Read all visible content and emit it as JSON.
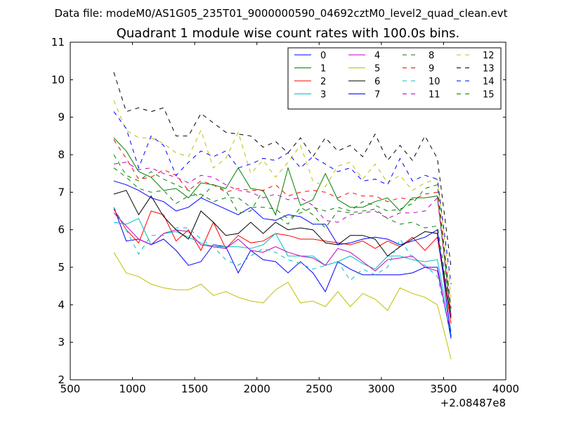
{
  "figure": {
    "suptitle": "Data file: modeM0/AS1G05_235T01_9000000590_04692cztM0_level2_quad_clean.evt"
  },
  "chart_data": {
    "type": "line",
    "title": "Quadrant 1 module wise count rates with 100.0s bins.",
    "xlabel": "",
    "ylabel": "",
    "x_offset_label": "+2.08487e8",
    "xlim": [
      500,
      4000
    ],
    "ylim": [
      2,
      11
    ],
    "xticks": [
      500,
      1000,
      1500,
      2000,
      2500,
      3000,
      3500,
      4000
    ],
    "yticks": [
      2,
      3,
      4,
      5,
      6,
      7,
      8,
      9,
      10,
      11
    ],
    "grid": false,
    "legend": {
      "placement": "top-right",
      "columns": 4
    },
    "x": [
      850,
      950,
      1050,
      1150,
      1250,
      1350,
      1450,
      1550,
      1650,
      1750,
      1850,
      1950,
      2050,
      2150,
      2250,
      2350,
      2450,
      2550,
      2650,
      2750,
      2850,
      2950,
      3050,
      3150,
      3250,
      3350,
      3450,
      3560
    ],
    "series": [
      {
        "name": "0",
        "color": "#0000ff",
        "dash": "solid",
        "values": [
          6.6,
          5.7,
          5.75,
          5.6,
          5.75,
          5.45,
          5.05,
          5.15,
          5.6,
          5.55,
          4.85,
          5.45,
          5.2,
          5.15,
          4.85,
          5.15,
          4.85,
          4.35,
          5.15,
          4.95,
          4.8,
          4.8,
          4.8,
          4.8,
          4.85,
          5.0,
          5.0,
          3.1
        ]
      },
      {
        "name": "1",
        "color": "#008000",
        "dash": "solid",
        "values": [
          8.45,
          8.1,
          7.55,
          7.4,
          7.05,
          7.1,
          6.85,
          7.25,
          7.2,
          7.1,
          7.65,
          7.1,
          7.05,
          6.4,
          7.65,
          6.65,
          6.8,
          7.5,
          6.8,
          6.6,
          6.6,
          6.75,
          6.85,
          6.5,
          6.85,
          6.85,
          6.9,
          3.7
        ]
      },
      {
        "name": "2",
        "color": "#ff0000",
        "dash": "solid",
        "values": [
          6.55,
          6.0,
          5.65,
          6.5,
          6.4,
          5.7,
          6.0,
          5.45,
          6.2,
          5.5,
          5.85,
          5.65,
          5.7,
          5.9,
          5.85,
          5.75,
          5.75,
          5.7,
          5.65,
          5.6,
          5.7,
          5.5,
          5.7,
          5.55,
          5.8,
          5.45,
          5.8,
          3.5
        ]
      },
      {
        "name": "3",
        "color": "#00bfbf",
        "dash": "solid",
        "values": [
          6.2,
          6.15,
          6.3,
          5.6,
          5.9,
          5.95,
          5.8,
          5.65,
          5.55,
          5.55,
          5.55,
          5.5,
          5.6,
          5.9,
          5.3,
          5.3,
          5.3,
          5.05,
          5.15,
          5.3,
          5.1,
          4.95,
          5.3,
          5.3,
          5.2,
          5.15,
          5.2,
          3.3
        ]
      },
      {
        "name": "4",
        "color": "#bf00bf",
        "dash": "solid",
        "values": [
          6.45,
          6.1,
          5.75,
          5.6,
          5.9,
          6.0,
          5.95,
          5.6,
          5.55,
          5.5,
          5.75,
          5.45,
          5.4,
          5.55,
          5.4,
          5.3,
          5.25,
          5.05,
          5.5,
          5.4,
          5.15,
          4.9,
          5.2,
          5.25,
          5.3,
          5.0,
          4.9,
          3.2
        ]
      },
      {
        "name": "5",
        "color": "#bfbf00",
        "dash": "solid",
        "values": [
          5.4,
          4.85,
          4.75,
          4.55,
          4.45,
          4.4,
          4.4,
          4.55,
          4.25,
          4.35,
          4.2,
          4.1,
          4.05,
          4.4,
          4.6,
          4.05,
          4.1,
          3.95,
          4.35,
          3.95,
          4.3,
          4.15,
          3.85,
          4.45,
          4.3,
          4.2,
          4.0,
          2.55
        ]
      },
      {
        "name": "6",
        "color": "#000000",
        "dash": "solid",
        "values": [
          6.95,
          7.05,
          6.4,
          6.9,
          6.35,
          6.0,
          5.75,
          6.5,
          6.2,
          5.85,
          5.9,
          6.2,
          5.9,
          6.2,
          6.0,
          6.05,
          6.0,
          5.65,
          5.6,
          5.85,
          5.85,
          5.75,
          5.3,
          5.55,
          5.75,
          5.95,
          5.9,
          3.65
        ]
      },
      {
        "name": "7",
        "color": "#0000ff",
        "dash": "solid",
        "values": [
          7.3,
          7.2,
          7.05,
          6.85,
          6.75,
          6.5,
          6.6,
          6.85,
          6.7,
          6.55,
          6.4,
          6.6,
          6.3,
          6.25,
          6.4,
          6.35,
          6.15,
          6.15,
          5.6,
          5.65,
          5.75,
          5.8,
          5.75,
          5.6,
          5.7,
          5.8,
          6.0,
          3.15
        ]
      },
      {
        "name": "8",
        "color": "#008000",
        "dash": "dashed",
        "values": [
          8.0,
          7.45,
          7.3,
          7.55,
          7.35,
          7.2,
          7.05,
          6.85,
          7.2,
          7.05,
          6.45,
          6.5,
          7.05,
          6.4,
          6.15,
          6.6,
          6.4,
          6.05,
          6.5,
          6.45,
          6.5,
          6.55,
          6.3,
          6.15,
          6.2,
          6.05,
          6.1,
          3.8
        ]
      },
      {
        "name": "9",
        "color": "#ff0000",
        "dash": "dashed",
        "values": [
          8.4,
          7.9,
          7.35,
          7.4,
          7.6,
          7.45,
          7.05,
          7.3,
          7.2,
          7.0,
          7.1,
          7.05,
          7.05,
          7.2,
          6.9,
          7.0,
          7.05,
          7.0,
          6.85,
          7.0,
          6.9,
          6.9,
          6.75,
          6.85,
          6.8,
          6.95,
          7.0,
          3.9
        ]
      },
      {
        "name": "10",
        "color": "#00bfbf",
        "dash": "dashed",
        "values": [
          6.6,
          6.0,
          5.35,
          5.85,
          5.85,
          6.05,
          6.05,
          5.75,
          5.55,
          5.2,
          5.05,
          5.3,
          5.5,
          5.4,
          5.2,
          5.1,
          4.95,
          5.05,
          5.15,
          4.65,
          4.95,
          4.8,
          5.0,
          5.75,
          5.25,
          5.05,
          4.75,
          3.2
        ]
      },
      {
        "name": "11",
        "color": "#bf00bf",
        "dash": "dashed",
        "values": [
          7.75,
          7.8,
          7.6,
          7.65,
          7.5,
          7.4,
          7.25,
          7.45,
          7.4,
          7.2,
          7.05,
          7.0,
          6.85,
          6.95,
          6.8,
          6.85,
          6.65,
          6.25,
          6.2,
          6.4,
          6.45,
          6.5,
          6.3,
          6.45,
          6.45,
          6.5,
          6.85,
          3.7
        ]
      },
      {
        "name": "12",
        "color": "#bfbf00",
        "dash": "dashed",
        "values": [
          9.45,
          8.65,
          8.45,
          8.45,
          8.3,
          8.05,
          7.95,
          8.65,
          7.65,
          7.9,
          8.6,
          7.5,
          7.85,
          7.4,
          7.8,
          8.25,
          7.3,
          7.15,
          7.7,
          7.8,
          7.35,
          7.75,
          7.25,
          7.45,
          7.05,
          7.25,
          7.35,
          4.2
        ]
      },
      {
        "name": "13",
        "color": "#000000",
        "dash": "dashed",
        "values": [
          10.2,
          9.15,
          9.25,
          9.15,
          9.25,
          8.5,
          8.5,
          9.1,
          8.85,
          8.6,
          8.55,
          8.5,
          8.2,
          8.35,
          8.05,
          8.45,
          7.95,
          8.45,
          8.1,
          8.25,
          7.95,
          8.55,
          7.85,
          8.25,
          7.85,
          8.5,
          7.9,
          5.0
        ]
      },
      {
        "name": "14",
        "color": "#0000ff",
        "dash": "dashed",
        "values": [
          9.15,
          8.7,
          7.65,
          8.5,
          8.25,
          7.45,
          7.8,
          8.1,
          7.95,
          8.1,
          7.65,
          7.75,
          7.9,
          7.85,
          8.05,
          7.65,
          7.95,
          7.75,
          7.55,
          7.65,
          7.3,
          7.35,
          7.2,
          7.9,
          7.3,
          7.45,
          7.35,
          4.55
        ]
      },
      {
        "name": "15",
        "color": "#008000",
        "dash": "dashed",
        "values": [
          7.65,
          7.4,
          7.1,
          7.0,
          7.05,
          6.7,
          6.9,
          6.95,
          6.75,
          6.85,
          6.85,
          6.6,
          6.6,
          6.55,
          6.3,
          6.45,
          6.6,
          6.5,
          6.6,
          6.5,
          6.75,
          6.65,
          6.5,
          6.55,
          6.7,
          7.1,
          7.2,
          3.9
        ]
      }
    ]
  }
}
